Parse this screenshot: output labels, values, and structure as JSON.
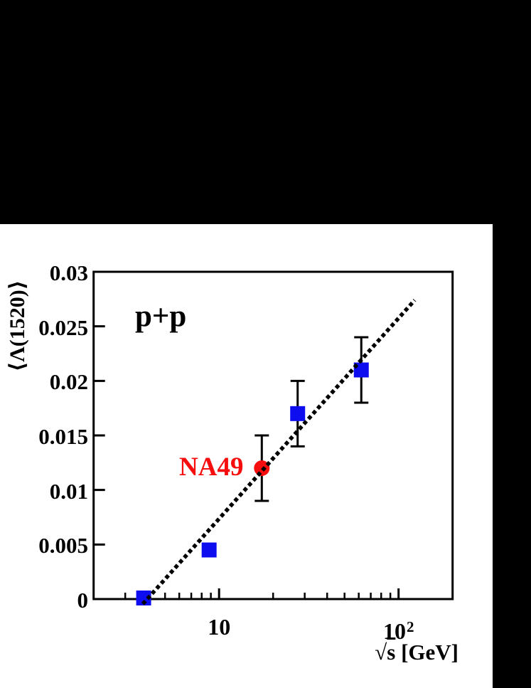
{
  "figure": {
    "background_color": "#ffffff",
    "letterbox_color": "#000000"
  },
  "chart_data": {
    "type": "scatter",
    "title": "p+p",
    "xlabel": "√s [GeV]",
    "xlabel_parts": {
      "radical": "√",
      "radicand": "s",
      "unit": " [GeV]"
    },
    "ylabel": "⟨Λ(1520)⟩",
    "x_scale": "log",
    "x_range": [
      2,
      200
    ],
    "y_range": [
      0,
      0.03
    ],
    "grid": false,
    "x_major_ticks": [
      10,
      100
    ],
    "x_tick_labels": [
      {
        "base": "10",
        "exp": ""
      },
      {
        "base": "10",
        "exp": "2"
      }
    ],
    "x_minor_ticks": [
      3,
      4,
      5,
      6,
      7,
      8,
      9,
      20,
      30,
      40,
      50,
      60,
      70,
      80,
      90
    ],
    "y_ticks": [
      0,
      0.005,
      0.01,
      0.015,
      0.02,
      0.025,
      0.03
    ],
    "y_tick_labels": [
      "0",
      "0.005",
      "0.01",
      "0.015",
      "0.02",
      "0.025",
      "0.03"
    ],
    "series": [
      {
        "name": "p+p",
        "marker": "square",
        "color": "#0d0df0",
        "points": [
          {
            "x": 3.8,
            "y": 0.0001,
            "ey": 0
          },
          {
            "x": 8.8,
            "y": 0.0045,
            "ey": 0
          },
          {
            "x": 27.4,
            "y": 0.017,
            "ey": 0.003
          },
          {
            "x": 62,
            "y": 0.021,
            "ey": 0.003
          }
        ]
      },
      {
        "name": "NA49",
        "marker": "circle",
        "color": "#f60d0d",
        "points": [
          {
            "x": 17.3,
            "y": 0.012,
            "ey": 0.003
          }
        ]
      }
    ],
    "fit_line": {
      "style": "dotted",
      "color": "#000000",
      "x1": 3.76,
      "y1": -0.00045,
      "x2": 123,
      "y2": 0.0274
    }
  }
}
